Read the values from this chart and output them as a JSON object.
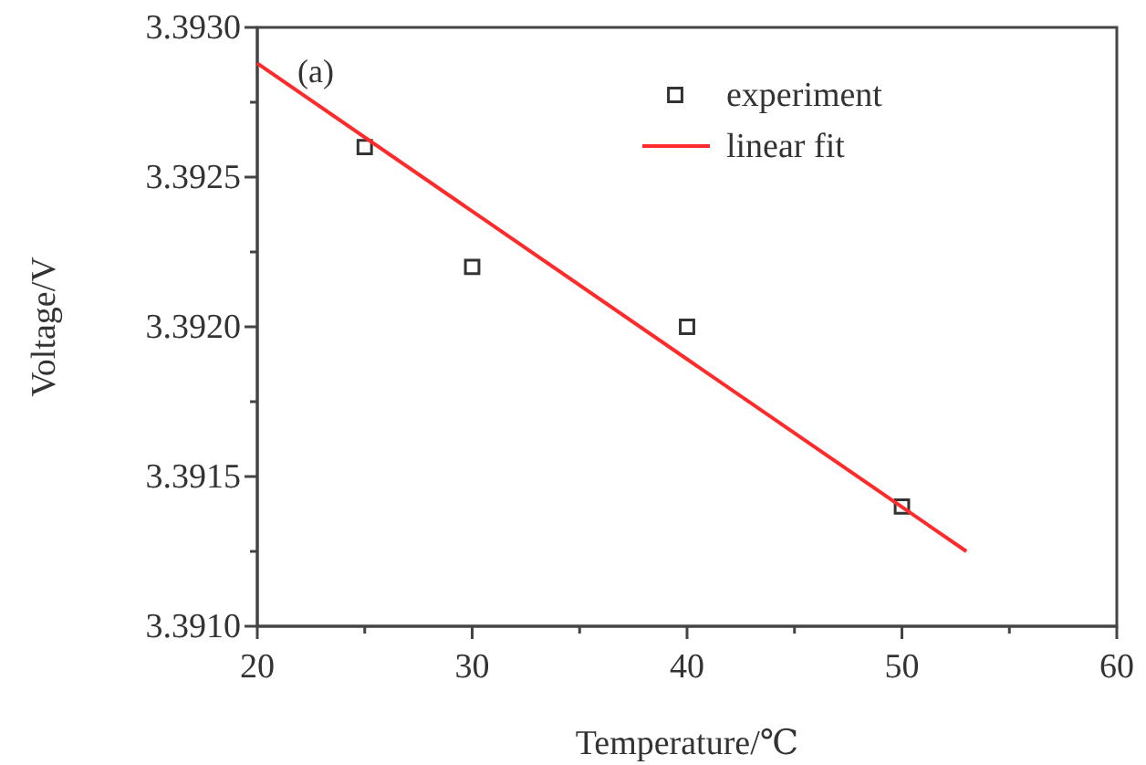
{
  "chart_data": {
    "type": "scatter",
    "xlabel": "Temperature/℃",
    "ylabel": "Voltage/V",
    "annotations": [
      "(a)"
    ],
    "xlim": [
      20,
      60
    ],
    "ylim": [
      3.391,
      3.393
    ],
    "xticks": [
      20,
      {
        "value": 25,
        "label": null
      },
      30,
      {
        "value": 35,
        "label": null
      },
      40,
      {
        "value": 45,
        "label": null
      },
      50,
      {
        "value": 55,
        "label": null
      },
      60
    ],
    "yticks": [
      {
        "value": 3.391,
        "label": "3.3910"
      },
      {
        "value": 3.39125,
        "label": null
      },
      {
        "value": 3.3915,
        "label": "3.3915"
      },
      {
        "value": 3.39175,
        "label": null
      },
      {
        "value": 3.392,
        "label": "3.3920"
      },
      {
        "value": 3.39225,
        "label": null
      },
      {
        "value": 3.3925,
        "label": "3.3925"
      },
      {
        "value": 3.39275,
        "label": null
      },
      {
        "value": 3.393,
        "label": "3.3930"
      }
    ],
    "legend": "top right",
    "grid": false,
    "series": [
      {
        "name": "experiment",
        "marker": "square",
        "color": "#333333",
        "x": [
          25,
          30,
          40,
          50
        ],
        "values": [
          3.3926,
          3.3922,
          3.392,
          3.3914
        ]
      },
      {
        "name": "linear fit",
        "type": "line",
        "line_style": "solid",
        "color": "#ff2a2a",
        "x": [
          20,
          53
        ],
        "values": [
          3.39288,
          3.39125
        ]
      }
    ]
  }
}
